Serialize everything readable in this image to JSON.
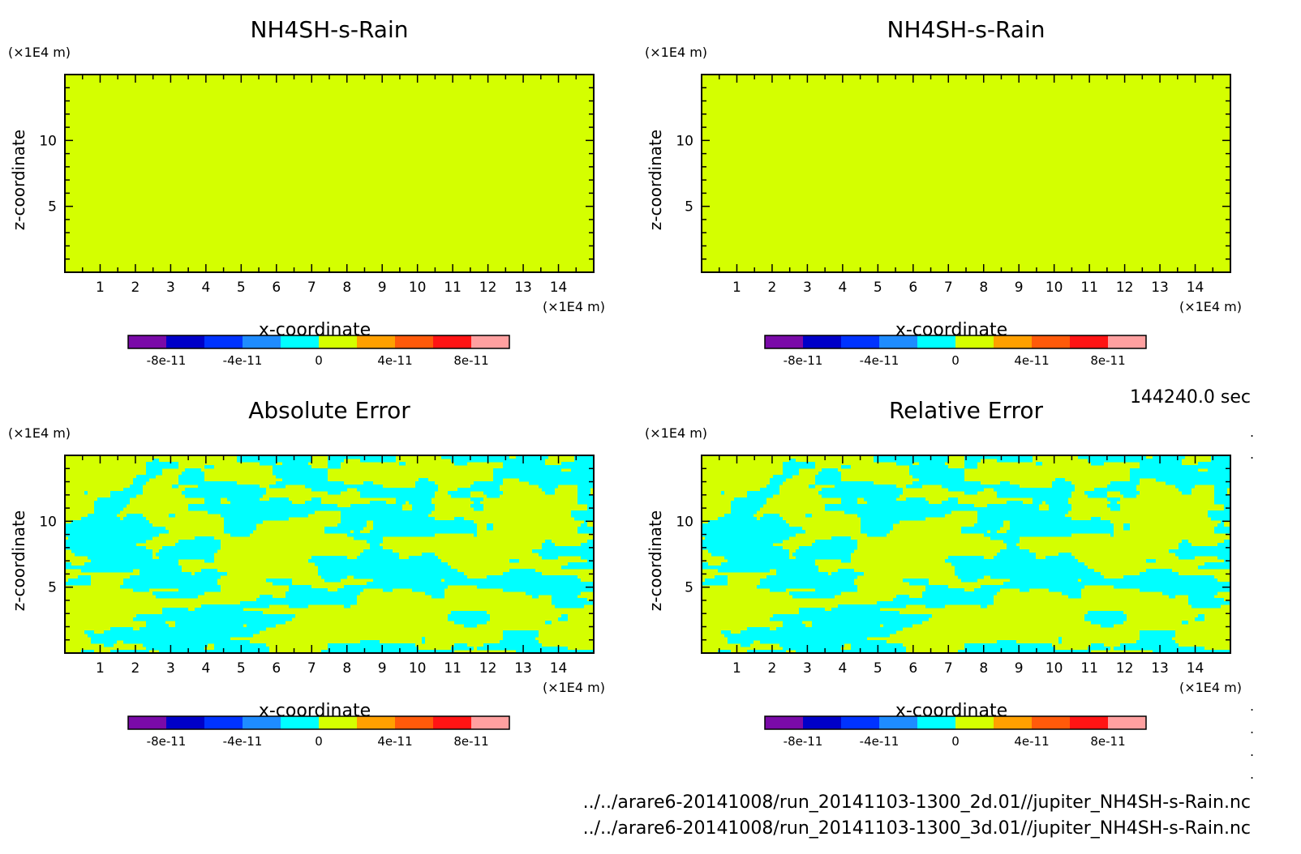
{
  "time_label": "144240.0 sec",
  "footer": {
    "file_1": "../../arare6-20141008/run_20141103-1300_2d.01//jupiter_NH4SH-s-Rain.nc",
    "file_2": "../../arare6-20141008/run_20141103-1300_3d.01//jupiter_NH4SH-s-Rain.nc"
  },
  "colors": {
    "levels": [
      "#7a0aa8",
      "#0000c8",
      "#0033ff",
      "#1e8cff",
      "#00ffff",
      "#d4ff00",
      "#ffa000",
      "#ff5a0a",
      "#ff1414",
      "#ffa0a0"
    ],
    "field_zero": "#d4ff00",
    "field_negative": "#00ffff"
  },
  "chart_data": [
    {
      "type": "heatmap",
      "title": "NH4SH-s-Rain",
      "xlabel": "x-coordinate",
      "ylabel": "z-coordinate",
      "x_unit": "(×1E4 m)",
      "y_unit": "(×1E4 m)",
      "xlim": [
        0,
        15
      ],
      "ylim": [
        0,
        15
      ],
      "xticks": [
        "1",
        "2",
        "3",
        "4",
        "5",
        "6",
        "7",
        "8",
        "9",
        "10",
        "11",
        "12",
        "13",
        "14"
      ],
      "yticks": [
        "5",
        "10"
      ],
      "field": "uniform",
      "colorbar": {
        "min": -1e-10,
        "max": 1e-10,
        "step": 2e-11,
        "tick_labels": [
          "-8e-11",
          "-4e-11",
          "0",
          "4e-11",
          "8e-11"
        ]
      }
    },
    {
      "type": "heatmap",
      "title": "NH4SH-s-Rain",
      "xlabel": "x-coordinate",
      "ylabel": "z-coordinate",
      "x_unit": "(×1E4 m)",
      "y_unit": "(×1E4 m)",
      "xlim": [
        0,
        15
      ],
      "ylim": [
        0,
        15
      ],
      "xticks": [
        "1",
        "2",
        "3",
        "4",
        "5",
        "6",
        "7",
        "8",
        "9",
        "10",
        "11",
        "12",
        "13",
        "14"
      ],
      "yticks": [
        "5",
        "10"
      ],
      "field": "uniform",
      "colorbar": {
        "min": -1e-10,
        "max": 1e-10,
        "step": 2e-11,
        "tick_labels": [
          "-8e-11",
          "-4e-11",
          "0",
          "4e-11",
          "8e-11"
        ]
      }
    },
    {
      "type": "heatmap",
      "title": "Absolute Error",
      "xlabel": "x-coordinate",
      "ylabel": "z-coordinate",
      "x_unit": "(×1E4 m)",
      "y_unit": "(×1E4 m)",
      "xlim": [
        0,
        15
      ],
      "ylim": [
        0,
        15
      ],
      "xticks": [
        "1",
        "2",
        "3",
        "4",
        "5",
        "6",
        "7",
        "8",
        "9",
        "10",
        "11",
        "12",
        "13",
        "14"
      ],
      "yticks": [
        "5",
        "10"
      ],
      "field": "patchy",
      "colorbar": {
        "min": -1e-10,
        "max": 1e-10,
        "step": 2e-11,
        "tick_labels": [
          "-8e-11",
          "-4e-11",
          "0",
          "4e-11",
          "8e-11"
        ]
      }
    },
    {
      "type": "heatmap",
      "title": "Relative Error",
      "xlabel": "x-coordinate",
      "ylabel": "z-coordinate",
      "x_unit": "(×1E4 m)",
      "y_unit": "(×1E4 m)",
      "xlim": [
        0,
        15
      ],
      "ylim": [
        0,
        15
      ],
      "xticks": [
        "1",
        "2",
        "3",
        "4",
        "5",
        "6",
        "7",
        "8",
        "9",
        "10",
        "11",
        "12",
        "13",
        "14"
      ],
      "yticks": [
        "5",
        "10"
      ],
      "field": "patchy",
      "colorbar": {
        "min": -1e-10,
        "max": 1e-10,
        "step": 2e-11,
        "tick_labels": [
          "-8e-11",
          "-4e-11",
          "0",
          "4e-11",
          "8e-11"
        ]
      }
    }
  ]
}
